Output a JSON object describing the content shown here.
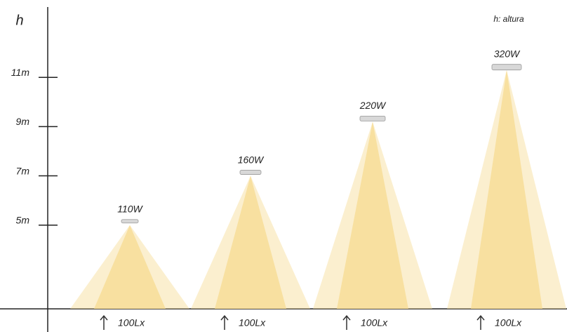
{
  "chart_data": {
    "type": "cone",
    "y_label": "h",
    "annotation": "h: altura",
    "categories": [
      "110W",
      "160W",
      "220W",
      "320W"
    ],
    "values": [
      5,
      7,
      9.2,
      11.3
    ],
    "illuminance_labels": [
      "100Lx",
      "100Lx",
      "100Lx",
      "100Lx"
    ],
    "color": "#f7dc94",
    "ylim": [
      1.6,
      13.8
    ],
    "yticks": [
      {
        "value": 5,
        "label": "5m"
      },
      {
        "value": 7,
        "label": "7m"
      },
      {
        "value": 9,
        "label": "9m"
      },
      {
        "value": 11,
        "label": "11m"
      }
    ]
  }
}
